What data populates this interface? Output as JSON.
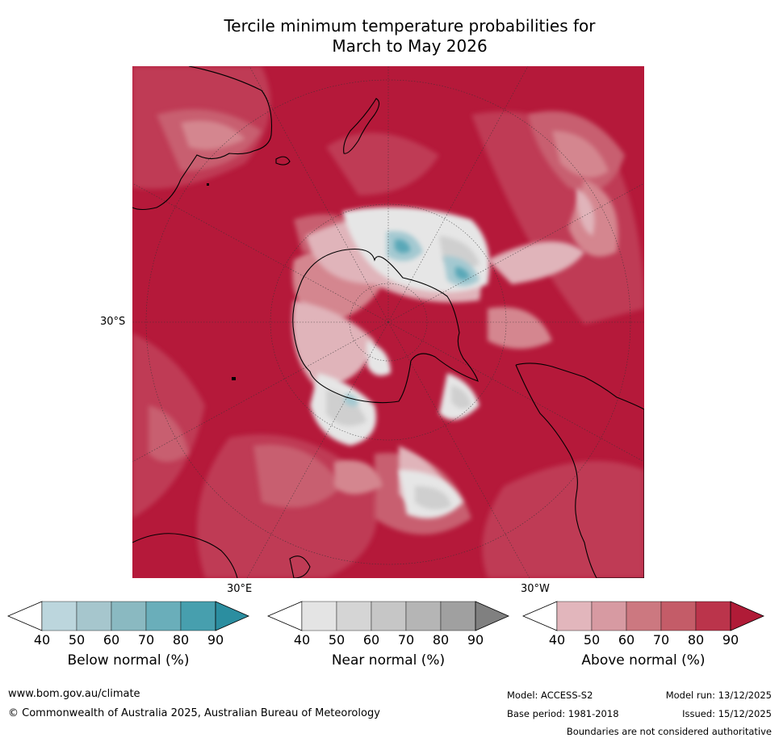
{
  "title_line1": "Tercile minimum temperature probabilities for",
  "title_line2": "March to May 2026",
  "map": {
    "lat_label": "30°S",
    "lon_label_east": "30°E",
    "lon_label_west": "30°W",
    "colors": {
      "above_90": "#b5193a",
      "above_80": "#bf3a54",
      "above_70": "#c85f6f",
      "above_60": "#d4868f",
      "above_50": "#e0b4ba",
      "near": "#d9d9d9",
      "near_light": "#ececec",
      "below": "#a4c9d1",
      "below_dark": "#5aa8b8"
    }
  },
  "colorbars": [
    {
      "label": "Below normal (%)",
      "ticks": [
        "40",
        "50",
        "60",
        "70",
        "80",
        "90"
      ],
      "colors": [
        "#ffffff",
        "#bcd6dd",
        "#a6c6cd",
        "#8ab9c1",
        "#6aaeba",
        "#479fae",
        "#2b8ea0"
      ]
    },
    {
      "label": "Near normal (%)",
      "ticks": [
        "40",
        "50",
        "60",
        "70",
        "80",
        "90"
      ],
      "colors": [
        "#ffffff",
        "#e4e4e4",
        "#d5d5d5",
        "#c6c6c6",
        "#b5b5b5",
        "#a0a0a0",
        "#808080"
      ]
    },
    {
      "label": "Above normal (%)",
      "ticks": [
        "40",
        "50",
        "60",
        "70",
        "80",
        "90"
      ],
      "colors": [
        "#ffffff",
        "#e2b6bc",
        "#d79aa2",
        "#cc7880",
        "#c45c68",
        "#bb344b",
        "#b01b37"
      ]
    }
  ],
  "footer": {
    "website": "www.bom.gov.au/climate",
    "copyright": "© Commonwealth of Australia 2025, Australian Bureau of Meteorology",
    "model": "Model: ACCESS-S2",
    "model_run": "Model run: 13/12/2025",
    "base_period": "Base period: 1981-2018",
    "issued": "Issued: 15/12/2025",
    "disclaimer": "Boundaries are not considered authoritative"
  }
}
